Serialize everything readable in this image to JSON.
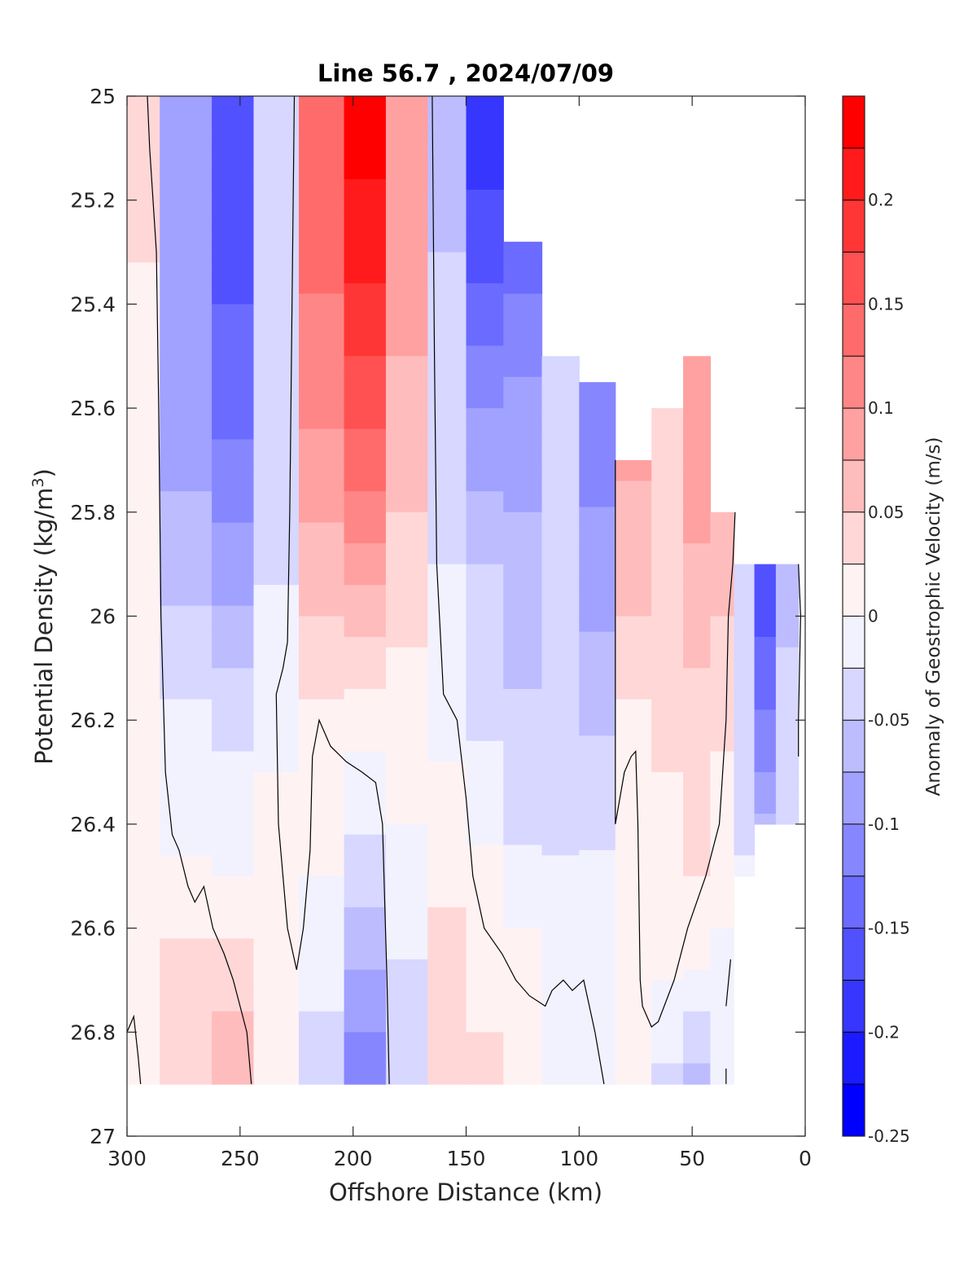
{
  "chart_data": {
    "type": "heatmap",
    "title": "Line 56.7 , 2024/07/09",
    "xlabel": "Offshore Distance (km)",
    "ylabel": "Potential Density (kg/m",
    "ylabel_sup": "3",
    "ylabel_close": ")",
    "colorbar_label": "Anomaly of Geostrophic Velocity (m/s)",
    "xlim": [
      300,
      0
    ],
    "ylim": [
      25,
      27
    ],
    "xticks": [
      300,
      250,
      200,
      150,
      100,
      50,
      0
    ],
    "xtick_labels": [
      "300",
      "250",
      "200",
      "150",
      "100",
      "50",
      "0"
    ],
    "yticks": [
      25,
      25.2,
      25.4,
      25.6,
      25.8,
      26,
      26.2,
      26.4,
      26.6,
      26.8,
      27
    ],
    "ytick_labels": [
      "25",
      "25.2",
      "25.4",
      "25.6",
      "25.8",
      "26",
      "26.2",
      "26.4",
      "26.6",
      "26.8",
      "27"
    ],
    "clim": [
      -0.25,
      0.25
    ],
    "colorbar_levels": 20,
    "colorbar_ticks": [
      -0.25,
      -0.2,
      -0.15,
      -0.1,
      -0.05,
      0,
      0.05,
      0.1,
      0.15,
      0.2
    ],
    "colorbar_tick_labels": [
      "-0.25",
      "-0.2",
      "-0.15",
      "-0.1",
      "-0.05",
      "0",
      "0.05",
      "0.1",
      "0.15",
      "0.2"
    ],
    "colormap": {
      "negative": "#0000ff",
      "neutral": "#ffffff",
      "positive": "#ff0000"
    },
    "grid": false,
    "contour_lines": "zero contour, black",
    "columns": [
      {
        "x": 299,
        "top": 25.0,
        "bottom": 26.9,
        "profile": [
          [
            25.0,
            0.03
          ],
          [
            25.3,
            0.03
          ],
          [
            25.45,
            0.0
          ],
          [
            26.5,
            0.0
          ],
          [
            26.9,
            0.0
          ]
        ]
      },
      {
        "x": 272,
        "top": 25.0,
        "bottom": 26.9,
        "profile": [
          [
            25.0,
            -0.09
          ],
          [
            25.5,
            -0.1
          ],
          [
            25.9,
            -0.06
          ],
          [
            26.2,
            -0.02
          ],
          [
            26.45,
            0.0
          ],
          [
            26.65,
            0.03
          ],
          [
            26.9,
            0.05
          ]
        ]
      },
      {
        "x": 253,
        "top": 25.0,
        "bottom": 26.9,
        "profile": [
          [
            25.0,
            -0.16
          ],
          [
            25.4,
            -0.15
          ],
          [
            25.7,
            -0.12
          ],
          [
            26.0,
            -0.07
          ],
          [
            26.2,
            -0.03
          ],
          [
            26.5,
            0.0
          ],
          [
            26.7,
            0.04
          ],
          [
            26.9,
            0.07
          ]
        ]
      },
      {
        "x": 235,
        "top": 25.0,
        "bottom": 26.9,
        "profile": [
          [
            25.0,
            -0.03
          ],
          [
            25.6,
            -0.05
          ],
          [
            26.0,
            -0.02
          ],
          [
            26.3,
            0.0
          ],
          [
            26.7,
            0.0
          ],
          [
            26.9,
            0.0
          ]
        ]
      },
      {
        "x": 213,
        "top": 25.0,
        "bottom": 26.9,
        "profile": [
          [
            25.0,
            0.14
          ],
          [
            25.5,
            0.12
          ],
          [
            26.0,
            0.05
          ],
          [
            26.2,
            0.02
          ],
          [
            26.5,
            0.0
          ],
          [
            26.7,
            -0.02
          ],
          [
            26.9,
            -0.04
          ]
        ]
      },
      {
        "x": 195,
        "top": 25.0,
        "bottom": 26.9,
        "profile": [
          [
            25.0,
            0.24
          ],
          [
            25.3,
            0.21
          ],
          [
            25.7,
            0.14
          ],
          [
            26.0,
            0.06
          ],
          [
            26.2,
            0.01
          ],
          [
            26.4,
            -0.02
          ],
          [
            26.7,
            -0.08
          ],
          [
            26.9,
            -0.12
          ]
        ]
      },
      {
        "x": 176,
        "top": 25.0,
        "bottom": 26.9,
        "profile": [
          [
            25.0,
            0.1
          ],
          [
            25.6,
            0.07
          ],
          [
            26.1,
            0.02
          ],
          [
            26.4,
            0.0
          ],
          [
            26.7,
            -0.03
          ],
          [
            26.9,
            -0.03
          ]
        ]
      },
      {
        "x": 158,
        "top": 25.0,
        "bottom": 26.9,
        "profile": [
          [
            25.0,
            -0.06
          ],
          [
            25.6,
            -0.04
          ],
          [
            26.2,
            -0.01
          ],
          [
            26.45,
            0.02
          ],
          [
            26.9,
            0.04
          ]
        ]
      },
      {
        "x": 142,
        "top": 25.0,
        "bottom": 26.9,
        "profile": [
          [
            25.0,
            -0.2
          ],
          [
            25.3,
            -0.16
          ],
          [
            25.6,
            -0.1
          ],
          [
            25.9,
            -0.05
          ],
          [
            26.3,
            -0.02
          ],
          [
            26.5,
            0.01
          ],
          [
            26.9,
            0.03
          ]
        ]
      },
      {
        "x": 125,
        "top": 25.28,
        "bottom": 26.9,
        "profile": [
          [
            25.28,
            -0.14
          ],
          [
            25.6,
            -0.09
          ],
          [
            26.0,
            -0.06
          ],
          [
            26.4,
            -0.03
          ],
          [
            26.6,
            0.0
          ],
          [
            26.9,
            0.02
          ]
        ]
      },
      {
        "x": 108,
        "top": 25.5,
        "bottom": 26.9,
        "profile": [
          [
            25.5,
            -0.04
          ],
          [
            26.0,
            -0.05
          ],
          [
            26.4,
            -0.03
          ],
          [
            26.65,
            -0.01
          ],
          [
            26.9,
            0.0
          ]
        ]
      },
      {
        "x": 92,
        "top": 25.55,
        "bottom": 26.9,
        "profile": [
          [
            25.55,
            -0.12
          ],
          [
            25.9,
            -0.09
          ],
          [
            26.3,
            -0.04
          ],
          [
            26.6,
            -0.01
          ],
          [
            26.9,
            0.0
          ]
        ]
      },
      {
        "x": 76,
        "top": 25.7,
        "bottom": 26.9,
        "profile": [
          [
            25.7,
            0.08
          ],
          [
            26.0,
            0.05
          ],
          [
            26.3,
            0.0
          ],
          [
            26.9,
            0.0
          ]
        ]
      },
      {
        "x": 60,
        "top": 25.6,
        "bottom": 26.9,
        "profile": [
          [
            25.6,
            0.04
          ],
          [
            26.0,
            0.04
          ],
          [
            26.4,
            0.02
          ],
          [
            26.7,
            0.0
          ],
          [
            26.9,
            -0.03
          ]
        ]
      },
      {
        "x": 48,
        "top": 25.5,
        "bottom": 26.9,
        "profile": [
          [
            25.5,
            0.1
          ],
          [
            25.8,
            0.08
          ],
          [
            26.2,
            0.04
          ],
          [
            26.6,
            0.02
          ],
          [
            26.75,
            -0.02
          ],
          [
            26.9,
            -0.06
          ]
        ]
      },
      {
        "x": 36,
        "top": 25.8,
        "bottom": 26.9,
        "profile": [
          [
            25.8,
            0.07
          ],
          [
            26.2,
            0.03
          ],
          [
            26.6,
            0.0
          ],
          [
            26.9,
            -0.02
          ]
        ]
      },
      {
        "x": 27,
        "top": 25.9,
        "bottom": 26.5,
        "profile": [
          [
            25.9,
            -0.03
          ],
          [
            26.2,
            -0.05
          ],
          [
            26.5,
            -0.02
          ]
        ]
      },
      {
        "x": 18,
        "top": 25.9,
        "bottom": 26.4,
        "profile": [
          [
            25.9,
            -0.17
          ],
          [
            26.1,
            -0.14
          ],
          [
            26.3,
            -0.1
          ],
          [
            26.4,
            -0.07
          ]
        ]
      },
      {
        "x": 8,
        "top": 25.9,
        "bottom": 26.4,
        "profile": [
          [
            25.9,
            -0.06
          ],
          [
            26.2,
            -0.04
          ],
          [
            26.4,
            -0.03
          ]
        ]
      }
    ],
    "zero_contours": [
      [
        [
          291,
          25.0
        ],
        [
          290,
          25.1
        ],
        [
          287,
          25.3
        ],
        [
          286,
          25.6
        ],
        [
          285,
          26.0
        ],
        [
          283,
          26.3
        ],
        [
          280,
          26.42
        ],
        [
          277,
          26.45
        ],
        [
          273,
          26.52
        ],
        [
          270,
          26.55
        ],
        [
          266,
          26.52
        ],
        [
          262,
          26.6
        ],
        [
          257,
          26.65
        ],
        [
          253,
          26.7
        ],
        [
          247,
          26.8
        ],
        [
          245,
          26.9
        ]
      ],
      [
        [
          226,
          25.0
        ],
        [
          227,
          25.4
        ],
        [
          228,
          25.8
        ],
        [
          229,
          26.05
        ],
        [
          231,
          26.1
        ],
        [
          234,
          26.15
        ],
        [
          233,
          26.4
        ],
        [
          229,
          26.6
        ],
        [
          225,
          26.68
        ],
        [
          222,
          26.6
        ],
        [
          219,
          26.45
        ],
        [
          218,
          26.27
        ],
        [
          215,
          26.2
        ],
        [
          210,
          26.25
        ],
        [
          203,
          26.28
        ],
        [
          196,
          26.3
        ],
        [
          190,
          26.32
        ],
        [
          187,
          26.4
        ],
        [
          185,
          26.7
        ],
        [
          184,
          26.9
        ]
      ],
      [
        [
          165,
          25.0
        ],
        [
          164,
          25.5
        ],
        [
          163,
          25.9
        ],
        [
          160,
          26.15
        ],
        [
          154,
          26.2
        ],
        [
          150,
          26.35
        ],
        [
          147,
          26.5
        ],
        [
          142,
          26.6
        ],
        [
          134,
          26.65
        ],
        [
          128,
          26.7
        ],
        [
          122,
          26.73
        ],
        [
          115,
          26.75
        ],
        [
          112,
          26.72
        ],
        [
          107,
          26.7
        ],
        [
          103,
          26.72
        ],
        [
          98,
          26.7
        ],
        [
          93,
          26.8
        ],
        [
          89,
          26.9
        ]
      ],
      [
        [
          84,
          25.7
        ],
        [
          84,
          26.1
        ],
        [
          84,
          26.4
        ],
        [
          80,
          26.3
        ],
        [
          77,
          26.27
        ],
        [
          75,
          26.26
        ],
        [
          74,
          26.4
        ],
        [
          73,
          26.7
        ],
        [
          72,
          26.75
        ],
        [
          68,
          26.79
        ],
        [
          65,
          26.78
        ],
        [
          58,
          26.7
        ],
        [
          52,
          26.6
        ],
        [
          44,
          26.5
        ],
        [
          38,
          26.4
        ],
        [
          35,
          26.2
        ],
        [
          34,
          26.0
        ],
        [
          32,
          25.9
        ],
        [
          31,
          25.8
        ]
      ],
      [
        [
          3,
          25.9
        ],
        [
          2,
          26.0
        ],
        [
          3,
          26.2
        ],
        [
          3,
          26.27
        ]
      ],
      [
        [
          300,
          26.8
        ],
        [
          297,
          26.77
        ],
        [
          295,
          26.85
        ],
        [
          294,
          26.9
        ]
      ],
      [
        [
          33,
          26.66
        ],
        [
          35,
          26.75
        ]
      ],
      [
        [
          35,
          26.87
        ],
        [
          35,
          26.9
        ]
      ]
    ]
  }
}
